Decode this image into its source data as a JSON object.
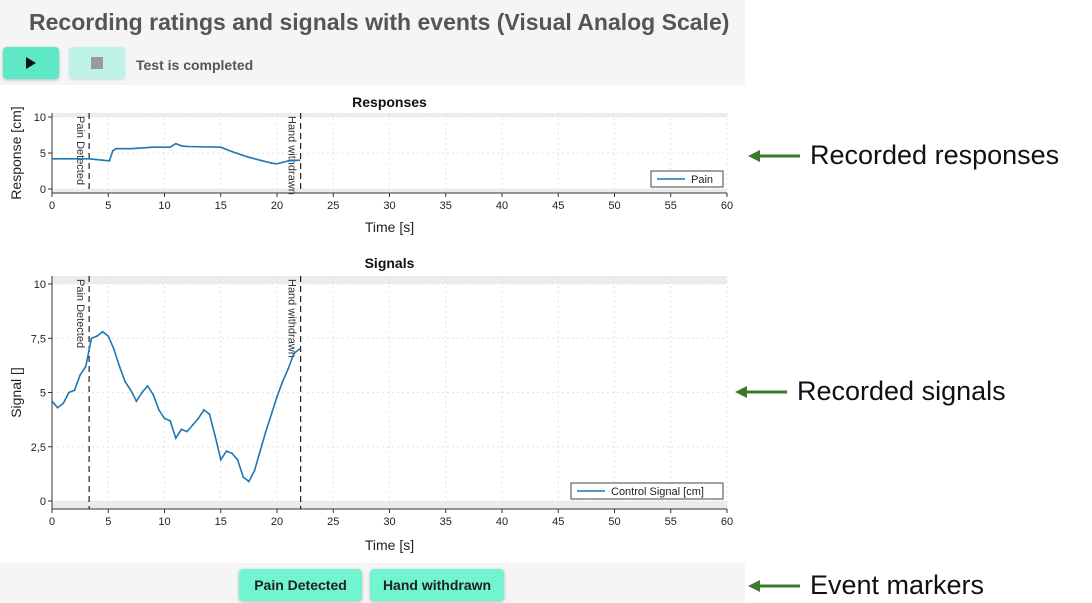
{
  "app": {
    "title": "Recording ratings and signals with events (Visual Analog Scale)",
    "status": "Test is completed"
  },
  "toolbar": {
    "play_icon": "play-icon",
    "stop_icon": "stop-icon"
  },
  "footer": {
    "event_buttons": [
      "Pain Detected",
      "Hand withdrawn"
    ]
  },
  "annotations": {
    "responses": "Recorded responses",
    "signals": "Recorded signals",
    "events": "Event markers"
  },
  "colors": {
    "accent": "#5ee8c5",
    "event_button": "#72f4d1",
    "series": "#1f77b4",
    "arrow": "#3a7a2a"
  },
  "chart_data": [
    {
      "type": "line",
      "title": "Responses",
      "xlabel": "Time [s]",
      "ylabel": "Response [cm]",
      "xlim": [
        0,
        60
      ],
      "ylim": [
        0,
        10
      ],
      "xticks": [
        "0",
        "5",
        "10",
        "15",
        "20",
        "25",
        "30",
        "35",
        "40",
        "45",
        "50",
        "55",
        "60"
      ],
      "yticks": [
        "0",
        "5",
        "10"
      ],
      "grid": true,
      "legend_position": "bottom-right",
      "events": [
        {
          "x": 3.3,
          "label": "Pain Detected"
        },
        {
          "x": 22.1,
          "label": "Hand withdrawn"
        }
      ],
      "series": [
        {
          "name": "Pain",
          "x": [
            0,
            3.3,
            4.5,
            5.1,
            5.4,
            5.7,
            7,
            9,
            10.5,
            11,
            11.5,
            12,
            15,
            16,
            17.5,
            19.5,
            20,
            21,
            22
          ],
          "y": [
            4.2,
            4.2,
            4.0,
            3.9,
            5.3,
            5.6,
            5.6,
            5.8,
            5.8,
            6.3,
            6.0,
            5.9,
            5.8,
            5.2,
            4.4,
            3.6,
            3.5,
            3.9,
            4.0
          ]
        }
      ]
    },
    {
      "type": "line",
      "title": "Signals",
      "xlabel": "Time [s]",
      "ylabel": "Signal []",
      "xlim": [
        0,
        60
      ],
      "ylim": [
        0,
        10
      ],
      "xticks": [
        "0",
        "5",
        "10",
        "15",
        "20",
        "25",
        "30",
        "35",
        "40",
        "45",
        "50",
        "55",
        "60"
      ],
      "yticks": [
        "0",
        "2,5",
        "5",
        "7,5",
        "10"
      ],
      "ytick_values": [
        0,
        2.5,
        5,
        7.5,
        10
      ],
      "grid": true,
      "legend_position": "bottom-right",
      "events": [
        {
          "x": 3.3,
          "label": "Pain Detected"
        },
        {
          "x": 22.1,
          "label": "Hand withdrawn"
        }
      ],
      "series": [
        {
          "name": "Control Signal [cm]",
          "x": [
            0,
            0.5,
            1,
            1.5,
            2,
            2.5,
            3,
            3.5,
            4,
            4.5,
            5,
            5.5,
            6,
            6.5,
            7,
            7.5,
            8,
            8.5,
            9,
            9.5,
            10,
            10.5,
            11,
            11.5,
            12,
            12.5,
            13,
            13.5,
            14,
            14.5,
            15,
            15.5,
            16,
            16.5,
            17,
            17.5,
            18,
            18.5,
            19,
            19.5,
            20,
            20.5,
            21,
            21.5,
            22
          ],
          "y": [
            4.6,
            4.3,
            4.5,
            5.0,
            5.1,
            5.8,
            6.2,
            7.5,
            7.6,
            7.8,
            7.6,
            7.0,
            6.2,
            5.5,
            5.1,
            4.6,
            5.0,
            5.3,
            4.9,
            4.2,
            3.8,
            3.7,
            2.9,
            3.3,
            3.2,
            3.5,
            3.8,
            4.2,
            4.0,
            3.0,
            1.9,
            2.3,
            2.2,
            1.9,
            1.1,
            0.9,
            1.4,
            2.3,
            3.2,
            4.0,
            4.8,
            5.5,
            6.1,
            6.8,
            7.0
          ]
        }
      ]
    }
  ]
}
